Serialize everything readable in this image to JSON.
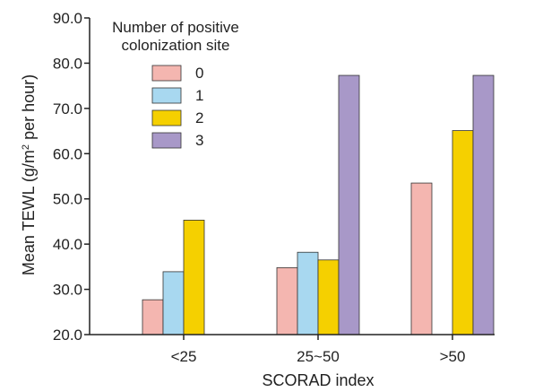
{
  "chart_data": {
    "type": "bar",
    "title": "",
    "xlabel": "SCORAD index",
    "ylabel_parts": {
      "pre": "Mean TEWL (g/m",
      "sup": "2",
      "post": " per hour)"
    },
    "categories": [
      "<25",
      "25~50",
      ">50"
    ],
    "ylim": [
      20.0,
      90.0
    ],
    "yticks": [
      "20.0",
      "30.0",
      "40.0",
      "50.0",
      "60.0",
      "70.0",
      "80.0",
      "90.0"
    ],
    "legend": {
      "title_lines": [
        "Number of positive",
        "colonization site"
      ],
      "placement": "top-left"
    },
    "series": [
      {
        "name": "0",
        "color": "#f4b6b0",
        "values": [
          27.7,
          34.8,
          53.5
        ]
      },
      {
        "name": "1",
        "color": "#a8d8f0",
        "values": [
          33.9,
          38.2,
          null
        ]
      },
      {
        "name": "2",
        "color": "#f5d000",
        "values": [
          45.3,
          36.5,
          65.1
        ]
      },
      {
        "name": "3",
        "color": "#a898c8",
        "values": [
          null,
          77.3,
          77.3
        ]
      }
    ],
    "grid": false
  }
}
